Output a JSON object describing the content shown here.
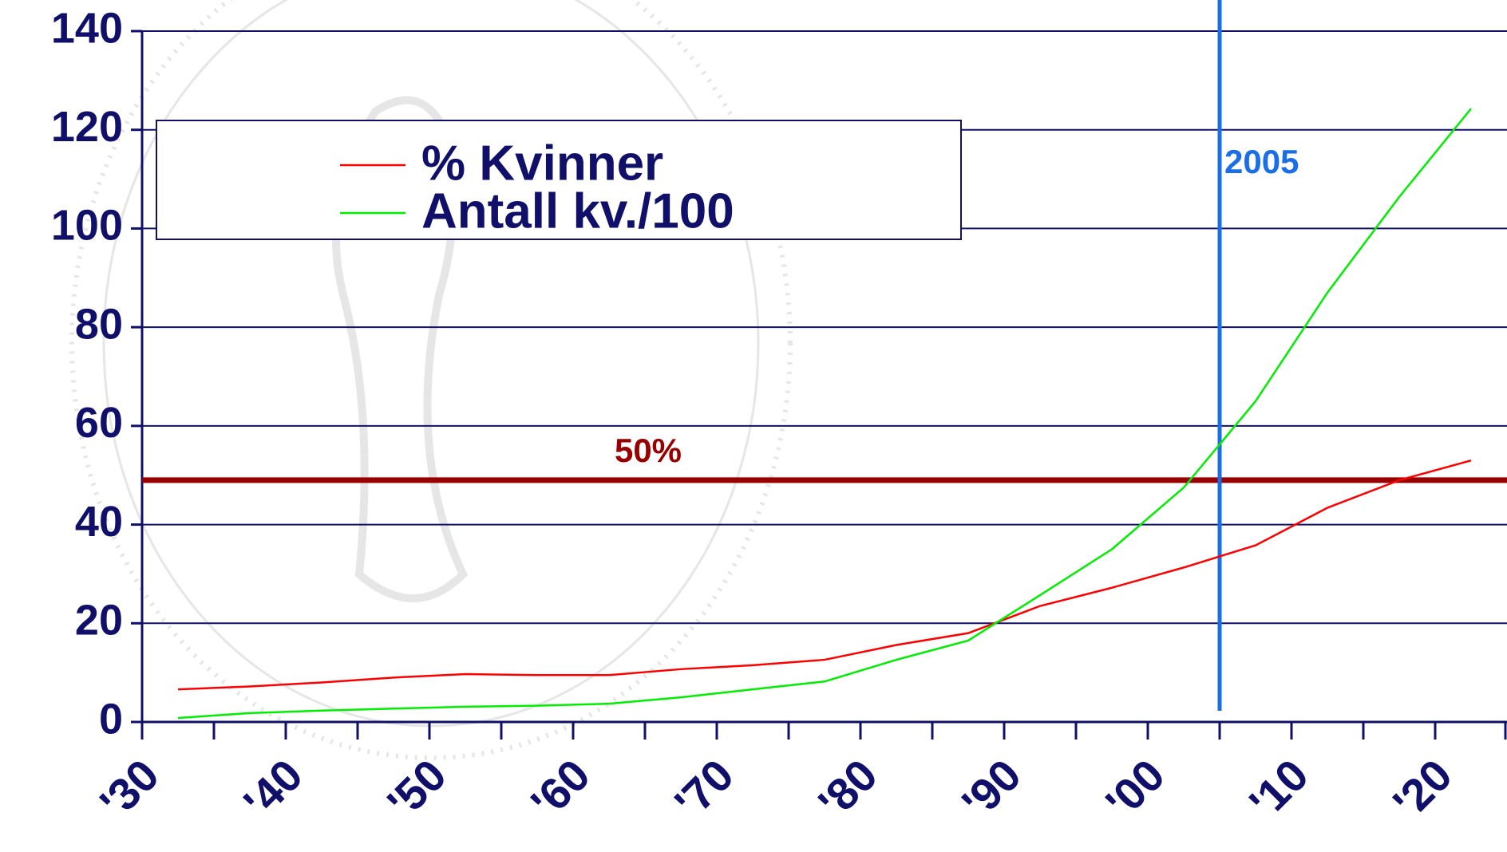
{
  "chart_data": {
    "type": "line",
    "x": [
      1932.5,
      1937.5,
      1942.5,
      1947.5,
      1952.5,
      1957.5,
      1962.5,
      1967.5,
      1972.5,
      1977.5,
      1982.5,
      1987.5,
      1992.5,
      1997.5,
      2002.5,
      2007.5,
      2012.5,
      2017.5,
      2022.5
    ],
    "series": [
      {
        "name": "% Kvinner",
        "color": "#ff0000",
        "values": [
          6.6,
          7.2,
          8,
          9,
          9.7,
          9.5,
          9.5,
          10.7,
          11.5,
          12.6,
          15.6,
          18,
          23.5,
          27.2,
          31.3,
          35.8,
          43.4,
          49,
          53
        ]
      },
      {
        "name": "Antall kv./100",
        "color": "#00ee00",
        "values": [
          0.8,
          1.8,
          2.3,
          2.7,
          3.1,
          3.3,
          3.7,
          5,
          6.6,
          8.2,
          12.6,
          16.5,
          25.7,
          35,
          47.5,
          65,
          87,
          106.4,
          124.3
        ]
      }
    ],
    "xlim": [
      1930,
      2025
    ],
    "xticks": [
      {
        "value": 1930,
        "label": "'30"
      },
      {
        "value": 1940,
        "label": "'40"
      },
      {
        "value": 1950,
        "label": "'50"
      },
      {
        "value": 1960,
        "label": "'60"
      },
      {
        "value": 1970,
        "label": "'70"
      },
      {
        "value": 1980,
        "label": "'80"
      },
      {
        "value": 1990,
        "label": "'90"
      },
      {
        "value": 2000,
        "label": "'00"
      },
      {
        "value": 2010,
        "label": "'10"
      },
      {
        "value": 2020,
        "label": "'20"
      }
    ],
    "xminorticks": [
      1935,
      1945,
      1955,
      1965,
      1975,
      1985,
      1995,
      2005,
      2015,
      2025
    ],
    "ylim": [
      0,
      140
    ],
    "yticks": [
      0,
      20,
      40,
      60,
      80,
      100,
      120,
      140
    ],
    "grid": true,
    "hline": {
      "value": 49,
      "label": "50%",
      "color": "#990000"
    },
    "vline": {
      "value": 2005,
      "label": "2005",
      "color": "#1a6fe8"
    },
    "legend": "upper left"
  }
}
